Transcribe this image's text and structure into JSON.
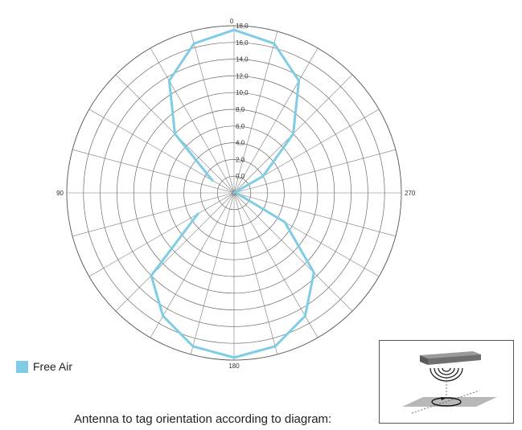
{
  "chart_data": {
    "type": "polar",
    "radial_ticks": [
      "0,0",
      "2,0",
      "4,0",
      "6,0",
      "8,0",
      "10,0",
      "12,0",
      "14,0",
      "16,0",
      "18,0"
    ],
    "radial_range": [
      -2,
      18
    ],
    "angle_labels": [
      {
        "angle": 0,
        "label": "0"
      },
      {
        "angle": 90,
        "label": "90"
      },
      {
        "angle": 180,
        "label": "180"
      },
      {
        "angle": 270,
        "label": "270"
      }
    ],
    "angle_direction": "counterclockwise",
    "series": [
      {
        "name": "Free Air",
        "color": "#7ecde4",
        "segments": [
          {
            "theta": [
              60,
              45,
              30,
              15,
              0,
              345,
              330,
              315,
              300,
              285
            ],
            "r": [
              1.0,
              8.0,
              13.5,
              16.5,
              17.5,
              16.5,
              13.5,
              8.0,
              2.0,
              -2.0
            ]
          },
          {
            "theta": [
              255,
              240,
              225,
              210,
              195,
              180,
              165,
              150,
              135,
              120
            ],
            "r": [
              -1.5,
              5.0,
              11.5,
              15.0,
              17.0,
              17.7,
              17.0,
              15.0,
              12.0,
              3.0
            ]
          }
        ]
      }
    ],
    "legend_position": "bottom-left"
  },
  "legend": {
    "label": "Free Air"
  },
  "caption": "Antenna to tag orientation according to diagram:"
}
